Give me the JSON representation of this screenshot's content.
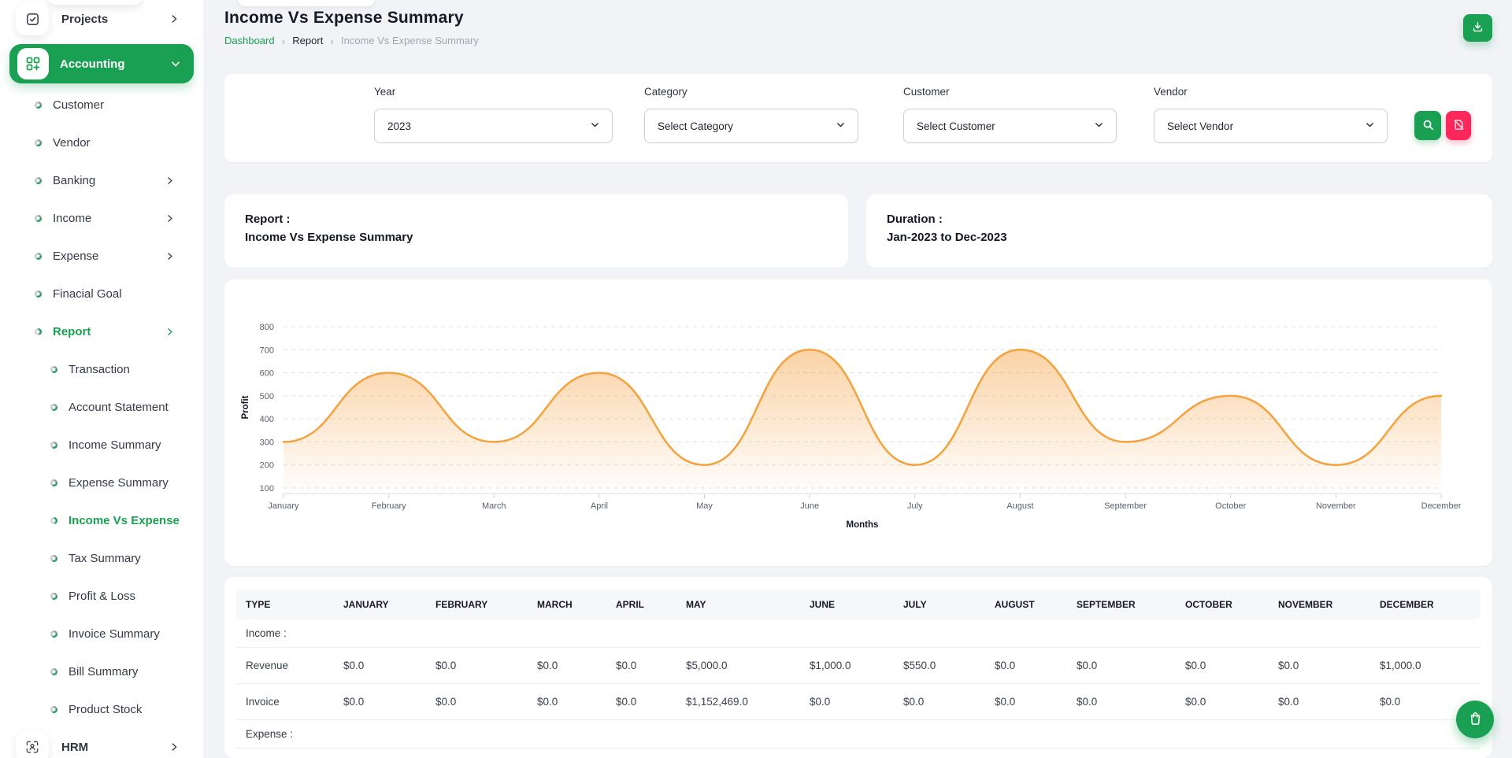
{
  "header": {
    "title": "Income Vs Expense Summary",
    "breadcrumb": [
      "Dashboard",
      "Report",
      "Income Vs Expense Summary"
    ]
  },
  "sidebar": {
    "items": [
      {
        "label": "Projects"
      },
      {
        "label": "Accounting"
      },
      {
        "label": "Customer"
      },
      {
        "label": "Vendor"
      },
      {
        "label": "Banking"
      },
      {
        "label": "Income"
      },
      {
        "label": "Expense"
      },
      {
        "label": "Finacial Goal"
      },
      {
        "label": "Report"
      },
      {
        "label": "Transaction"
      },
      {
        "label": "Account Statement"
      },
      {
        "label": "Income Summary"
      },
      {
        "label": "Expense Summary"
      },
      {
        "label": "Income Vs Expense"
      },
      {
        "label": "Tax Summary"
      },
      {
        "label": "Profit & Loss"
      },
      {
        "label": "Invoice Summary"
      },
      {
        "label": "Bill Summary"
      },
      {
        "label": "Product Stock"
      },
      {
        "label": "HRM"
      }
    ]
  },
  "filters": {
    "fields": [
      {
        "label": "Year",
        "value": "2023"
      },
      {
        "label": "Category",
        "value": "Select Category"
      },
      {
        "label": "Customer",
        "value": "Select Customer"
      },
      {
        "label": "Vendor",
        "value": "Select Vendor"
      }
    ]
  },
  "summary_cards": [
    {
      "title": "Report :",
      "value": "Income Vs Expense Summary"
    },
    {
      "title": "Duration :",
      "value": "Jan-2023 to Dec-2023"
    }
  ],
  "chart_data": {
    "type": "area",
    "x": [
      "January",
      "February",
      "March",
      "April",
      "May",
      "June",
      "July",
      "August",
      "September",
      "October",
      "November",
      "December"
    ],
    "series": [
      {
        "name": "Profit",
        "values": [
          300,
          600,
          300,
          600,
          200,
          700,
          200,
          700,
          300,
          500,
          200,
          500
        ]
      }
    ],
    "xlabel": "Months",
    "ylabel": "Profit",
    "ylim": [
      100,
      800
    ],
    "ytick_step": 100,
    "grid": "horizontal-dashed",
    "legend": "none",
    "line_color": "#f5a23c",
    "fill": "orange-gradient"
  },
  "table": {
    "headers": [
      "TYPE",
      "JANUARY",
      "FEBRUARY",
      "MARCH",
      "APRIL",
      "MAY",
      "JUNE",
      "JULY",
      "AUGUST",
      "SEPTEMBER",
      "OCTOBER",
      "NOVEMBER",
      "DECEMBER"
    ],
    "section_income": "Income :",
    "section_expense": "Expense :",
    "rows": [
      {
        "type": "Revenue",
        "values": [
          "$0.0",
          "$0.0",
          "$0.0",
          "$0.0",
          "$5,000.0",
          "$1,000.0",
          "$550.0",
          "$0.0",
          "$0.0",
          "$0.0",
          "$0.0",
          "$1,000.0"
        ]
      },
      {
        "type": "Invoice",
        "values": [
          "$0.0",
          "$0.0",
          "$0.0",
          "$0.0",
          "$1,152,469.0",
          "$0.0",
          "$0.0",
          "$0.0",
          "$0.0",
          "$0.0",
          "$0.0",
          "$0.0"
        ]
      }
    ]
  },
  "colors": {
    "accent_green": "#1aa053",
    "danger_pink": "#fc275a",
    "chart_orange": "#f5a23c",
    "page_background": "#f2f3f7",
    "text_dark": "#141824",
    "text_muted": "#a0a6ae"
  }
}
